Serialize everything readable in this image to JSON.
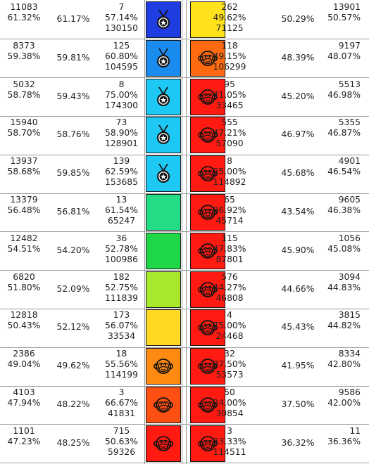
{
  "rows": [
    {
      "left": {
        "count": "11083",
        "pct": "61.32%",
        "avg": "61.17%",
        "sub_count": "7",
        "sub_pct": "57.14%",
        "total": "130150"
      },
      "left_cell": {
        "color": "#1f3de0",
        "icon": "medal-icon"
      },
      "right_cell": {
        "color": "#ffe21c",
        "icon": ""
      },
      "right": {
        "count": "262",
        "pct": "49.62%",
        "total": "71125",
        "avg": "50.29%",
        "end_count": "13901",
        "end_pct": "50.57%"
      }
    },
    {
      "left": {
        "count": "8373",
        "pct": "59.38%",
        "avg": "59.81%",
        "sub_count": "125",
        "sub_pct": "60.80%",
        "total": "104595"
      },
      "left_cell": {
        "color": "#1a8cf0",
        "icon": "medal-icon"
      },
      "right_cell": {
        "color": "#ff6a10",
        "icon": "monkey-face-icon"
      },
      "right": {
        "count": "118",
        "pct": "49.15%",
        "total": "106299",
        "avg": "48.39%",
        "end_count": "9197",
        "end_pct": "48.07%"
      }
    },
    {
      "left": {
        "count": "5032",
        "pct": "58.78%",
        "avg": "59.43%",
        "sub_count": "8",
        "sub_pct": "75.00%",
        "total": "174300"
      },
      "left_cell": {
        "color": "#1ec8f5",
        "icon": "medal-icon"
      },
      "right_cell": {
        "color": "#ff1a12",
        "icon": "monkey-face-icon"
      },
      "right": {
        "count": "95",
        "pct": "41.05%",
        "total": "33465",
        "avg": "45.20%",
        "end_count": "5513",
        "end_pct": "46.98%"
      }
    },
    {
      "left": {
        "count": "15940",
        "pct": "58.70%",
        "avg": "58.76%",
        "sub_count": "73",
        "sub_pct": "58.90%",
        "total": "128901"
      },
      "left_cell": {
        "color": "#1ec8f5",
        "icon": "medal-icon"
      },
      "right_cell": {
        "color": "#ff1a12",
        "icon": "monkey-face-icon"
      },
      "right": {
        "count": "555",
        "pct": "47.21%",
        "total": "57090",
        "avg": "46.97%",
        "end_count": "5355",
        "end_pct": "46.87%"
      }
    },
    {
      "left": {
        "count": "13937",
        "pct": "58.68%",
        "avg": "59.85%",
        "sub_count": "139",
        "sub_pct": "62.59%",
        "total": "153685"
      },
      "left_cell": {
        "color": "#1ec8f5",
        "icon": "medal-icon"
      },
      "right_cell": {
        "color": "#ff1a12",
        "icon": "monkey-face-icon"
      },
      "right": {
        "count": "8",
        "pct": "25.00%",
        "total": "114892",
        "avg": "45.68%",
        "end_count": "4901",
        "end_pct": "46.54%"
      }
    },
    {
      "left": {
        "count": "13379",
        "pct": "56.48%",
        "avg": "56.81%",
        "sub_count": "13",
        "sub_pct": "61.54%",
        "total": "65247"
      },
      "left_cell": {
        "color": "#22dc86",
        "icon": ""
      },
      "right_cell": {
        "color": "#ff1a12",
        "icon": "monkey-face-icon"
      },
      "right": {
        "count": "65",
        "pct": "36.92%",
        "total": "45714",
        "avg": "43.54%",
        "end_count": "9605",
        "end_pct": "46.38%"
      }
    },
    {
      "left": {
        "count": "12482",
        "pct": "54.51%",
        "avg": "54.20%",
        "sub_count": "36",
        "sub_pct": "52.78%",
        "total": "100986"
      },
      "left_cell": {
        "color": "#1fd648",
        "icon": ""
      },
      "right_cell": {
        "color": "#ff1a12",
        "icon": "monkey-face-icon"
      },
      "right": {
        "count": "115",
        "pct": "47.83%",
        "total": "87801",
        "avg": "45.90%",
        "end_count": "1056",
        "end_pct": "45.08%"
      }
    },
    {
      "left": {
        "count": "6820",
        "pct": "51.80%",
        "avg": "52.09%",
        "sub_count": "182",
        "sub_pct": "52.75%",
        "total": "111839"
      },
      "left_cell": {
        "color": "#a8e82c",
        "icon": ""
      },
      "right_cell": {
        "color": "#ff1a12",
        "icon": "monkey-face-icon"
      },
      "right": {
        "count": "576",
        "pct": "44.27%",
        "total": "46808",
        "avg": "44.66%",
        "end_count": "3094",
        "end_pct": "44.83%"
      }
    },
    {
      "left": {
        "count": "12818",
        "pct": "50.43%",
        "avg": "52.12%",
        "sub_count": "173",
        "sub_pct": "56.07%",
        "total": "33534"
      },
      "left_cell": {
        "color": "#ffd824",
        "icon": ""
      },
      "right_cell": {
        "color": "#ff1a12",
        "icon": "monkey-face-icon"
      },
      "right": {
        "count": "4",
        "pct": "75.00%",
        "total": "24468",
        "avg": "45.43%",
        "end_count": "3815",
        "end_pct": "44.82%"
      }
    },
    {
      "left": {
        "count": "2386",
        "pct": "49.04%",
        "avg": "49.62%",
        "sub_count": "18",
        "sub_pct": "55.56%",
        "total": "114199"
      },
      "left_cell": {
        "color": "#ff8a12",
        "icon": "monkey-face-icon"
      },
      "right_cell": {
        "color": "#ff1a12",
        "icon": "monkey-face-icon"
      },
      "right": {
        "count": "32",
        "pct": "37.50%",
        "total": "53573",
        "avg": "41.95%",
        "end_count": "8334",
        "end_pct": "42.80%"
      }
    },
    {
      "left": {
        "count": "4103",
        "pct": "47.94%",
        "avg": "48.22%",
        "sub_count": "3",
        "sub_pct": "66.67%",
        "total": "41831"
      },
      "left_cell": {
        "color": "#ff5014",
        "icon": "monkey-face-icon"
      },
      "right_cell": {
        "color": "#ff1a12",
        "icon": "monkey-face-icon"
      },
      "right": {
        "count": "50",
        "pct": "24.00%",
        "total": "30854",
        "avg": "37.50%",
        "end_count": "9586",
        "end_pct": "42.00%"
      }
    },
    {
      "left": {
        "count": "1101",
        "pct": "47.23%",
        "avg": "48.25%",
        "sub_count": "715",
        "sub_pct": "50.63%",
        "total": "59326"
      },
      "left_cell": {
        "color": "#ff1a12",
        "icon": "monkey-face-icon"
      },
      "right_cell": {
        "color": "#ff1a12",
        "icon": "monkey-face-icon"
      },
      "right": {
        "count": "3",
        "pct": "33.33%",
        "total": "114511",
        "avg": "36.32%",
        "end_count": "11",
        "end_pct": "36.36%"
      }
    }
  ]
}
